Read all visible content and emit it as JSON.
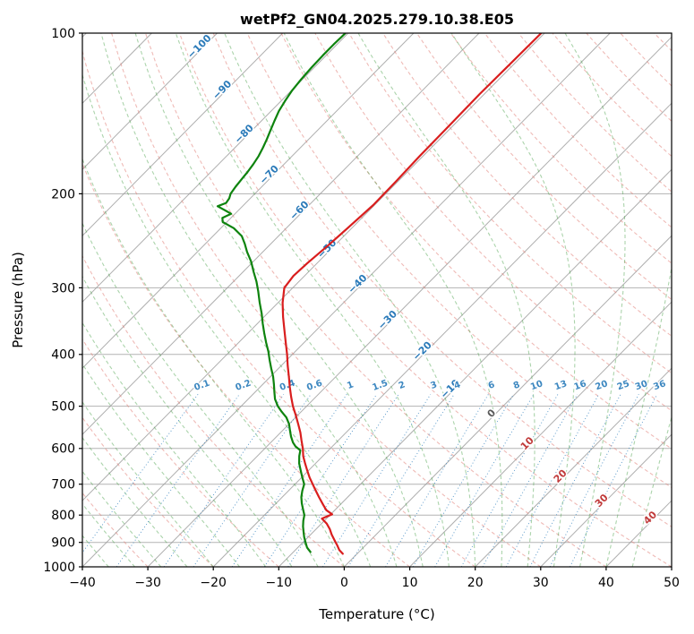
{
  "title": "wetPf2_GN04.2025.279.10.38.E05",
  "axes": {
    "x_label": "Temperature (°C)",
    "y_label": "Pressure (hPa)",
    "x_ticks": [
      -40,
      -30,
      -20,
      -10,
      0,
      10,
      20,
      30,
      40,
      50
    ],
    "y_ticks": [
      100,
      200,
      300,
      400,
      500,
      600,
      700,
      800,
      900,
      1000
    ]
  },
  "chart_data": {
    "type": "line",
    "variant": "skew-t-log-p",
    "title": "wetPf2_GN04.2025.279.10.38.E05",
    "xlabel": "Temperature (°C)",
    "ylabel": "Pressure (hPa)",
    "xlim": [
      -40,
      50
    ],
    "pressure_lim": [
      1000,
      100
    ],
    "skew_factor": 35,
    "grid": {
      "isobars_hpa": [
        100,
        200,
        300,
        400,
        500,
        600,
        700,
        800,
        900,
        1000
      ],
      "isotherms_c": {
        "start": -120,
        "end": 50,
        "step": 10
      },
      "dry_adiabats_theta_c": {
        "start": -40,
        "end": 200,
        "step": 10
      },
      "moist_adiabats_t0_c": {
        "start": -40,
        "end": 44,
        "step": 4
      },
      "mixing_ratio_g_kg": [
        0.1,
        0.2,
        0.4,
        0.6,
        1,
        1.5,
        2,
        3,
        4,
        6,
        8,
        10,
        13,
        16,
        20,
        25,
        30,
        36
      ]
    },
    "isotherm_labels": [
      {
        "t": -100,
        "p": 107
      },
      {
        "t": -90,
        "p": 129
      },
      {
        "t": -80,
        "p": 156
      },
      {
        "t": -70,
        "p": 186
      },
      {
        "t": -60,
        "p": 217
      },
      {
        "t": -50,
        "p": 256
      },
      {
        "t": -40,
        "p": 298
      },
      {
        "t": -30,
        "p": 348
      },
      {
        "t": -20,
        "p": 398
      },
      {
        "t": -10,
        "p": 469
      },
      {
        "t": 0,
        "p": 521
      },
      {
        "t": 10,
        "p": 593
      },
      {
        "t": 20,
        "p": 683
      },
      {
        "t": 30,
        "p": 759
      },
      {
        "t": 40,
        "p": 817
      }
    ],
    "mixing_label_pressure": 462,
    "mixing_line_top_pressure": 475,
    "colors": {
      "temperature": "#d91e1e",
      "dewpoint": "#0e830e",
      "isotherm_line": "#9a9a9a",
      "isobar_line": "#9a9a9a",
      "dry_adiabat": "#e2837b",
      "moist_adiabat": "#46a046",
      "mixing_ratio": "#3c87c0",
      "label_negative": "#2a7ab9",
      "label_positive": "#c03a3a",
      "label_zero": "#5a5a5a",
      "axis": "#000000"
    },
    "series": [
      {
        "name": "temperature",
        "color": "#d91e1e",
        "points": [
          [
            945,
            -2.2
          ],
          [
            930,
            -3.3
          ],
          [
            910,
            -4.4
          ],
          [
            890,
            -5.6
          ],
          [
            870,
            -6.8
          ],
          [
            850,
            -7.9
          ],
          [
            830,
            -9.2
          ],
          [
            812,
            -10.7
          ],
          [
            797,
            -9.8
          ],
          [
            783,
            -11.3
          ],
          [
            765,
            -12.6
          ],
          [
            740,
            -14.4
          ],
          [
            715,
            -16.2
          ],
          [
            700,
            -17.3
          ],
          [
            680,
            -18.8
          ],
          [
            660,
            -20.2
          ],
          [
            640,
            -21.6
          ],
          [
            620,
            -23.0
          ],
          [
            600,
            -24.2
          ],
          [
            580,
            -25.6
          ],
          [
            560,
            -27.0
          ],
          [
            540,
            -28.6
          ],
          [
            520,
            -30.3
          ],
          [
            500,
            -32.1
          ],
          [
            480,
            -33.8
          ],
          [
            460,
            -35.5
          ],
          [
            440,
            -37.2
          ],
          [
            420,
            -39.0
          ],
          [
            400,
            -40.8
          ],
          [
            380,
            -42.8
          ],
          [
            360,
            -44.9
          ],
          [
            340,
            -47.1
          ],
          [
            320,
            -49.3
          ],
          [
            300,
            -51.3
          ],
          [
            285,
            -51.7
          ],
          [
            270,
            -51.5
          ],
          [
            250,
            -51.0
          ],
          [
            230,
            -50.6
          ],
          [
            210,
            -50.2
          ],
          [
            190,
            -50.3
          ],
          [
            170,
            -50.5
          ],
          [
            150,
            -50.6
          ],
          [
            130,
            -50.7
          ],
          [
            115,
            -50.6
          ],
          [
            100,
            -50.5
          ]
        ]
      },
      {
        "name": "dewpoint",
        "color": "#0e830e",
        "points": [
          [
            938,
            -7.4
          ],
          [
            920,
            -8.6
          ],
          [
            900,
            -9.6
          ],
          [
            880,
            -10.6
          ],
          [
            860,
            -11.5
          ],
          [
            840,
            -12.4
          ],
          [
            820,
            -13.2
          ],
          [
            800,
            -13.9
          ],
          [
            780,
            -15.0
          ],
          [
            760,
            -16.1
          ],
          [
            740,
            -17.1
          ],
          [
            720,
            -17.9
          ],
          [
            700,
            -18.6
          ],
          [
            680,
            -19.9
          ],
          [
            660,
            -21.2
          ],
          [
            640,
            -22.5
          ],
          [
            620,
            -23.6
          ],
          [
            605,
            -24.3
          ],
          [
            595,
            -25.6
          ],
          [
            585,
            -26.6
          ],
          [
            570,
            -27.8
          ],
          [
            555,
            -28.9
          ],
          [
            540,
            -30.0
          ],
          [
            525,
            -31.4
          ],
          [
            512,
            -33.0
          ],
          [
            500,
            -34.4
          ],
          [
            485,
            -35.9
          ],
          [
            470,
            -37.1
          ],
          [
            455,
            -38.3
          ],
          [
            440,
            -39.6
          ],
          [
            425,
            -41.1
          ],
          [
            410,
            -42.6
          ],
          [
            395,
            -44.1
          ],
          [
            380,
            -45.8
          ],
          [
            365,
            -47.5
          ],
          [
            350,
            -49.2
          ],
          [
            335,
            -50.9
          ],
          [
            320,
            -52.8
          ],
          [
            305,
            -54.7
          ],
          [
            292,
            -56.5
          ],
          [
            280,
            -58.4
          ],
          [
            268,
            -60.3
          ],
          [
            257,
            -62.4
          ],
          [
            248,
            -64.0
          ],
          [
            240,
            -65.6
          ],
          [
            232,
            -68.0
          ],
          [
            226,
            -70.6
          ],
          [
            222,
            -71.3
          ],
          [
            218,
            -70.6
          ],
          [
            214,
            -72.4
          ],
          [
            211,
            -73.8
          ],
          [
            208,
            -73.0
          ],
          [
            204,
            -73.2
          ],
          [
            200,
            -73.7
          ],
          [
            194,
            -74.0
          ],
          [
            188,
            -74.2
          ],
          [
            182,
            -74.4
          ],
          [
            176,
            -74.7
          ],
          [
            170,
            -75.1
          ],
          [
            164,
            -75.7
          ],
          [
            158,
            -76.4
          ],
          [
            152,
            -77.2
          ],
          [
            146,
            -78.0
          ],
          [
            140,
            -78.8
          ],
          [
            134,
            -79.4
          ],
          [
            128,
            -79.9
          ],
          [
            122,
            -80.2
          ],
          [
            116,
            -80.4
          ],
          [
            110,
            -80.5
          ],
          [
            105,
            -80.5
          ],
          [
            100,
            -80.4
          ]
        ]
      }
    ]
  }
}
